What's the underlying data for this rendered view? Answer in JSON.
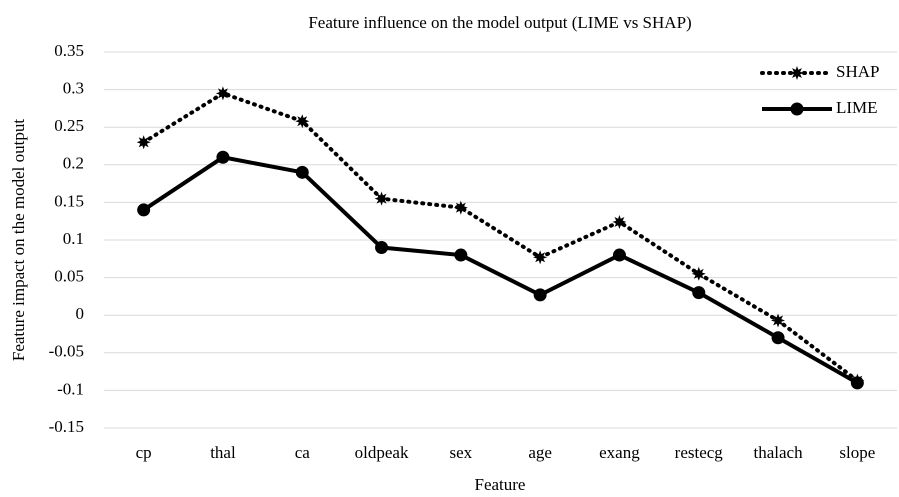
{
  "chart_data": {
    "type": "line",
    "title": "Feature influence on the model output (LIME vs SHAP)",
    "x_label": "Feature",
    "y_label": "Feature impact on the model output",
    "categories": [
      "cp",
      "thal",
      "ca",
      "oldpeak",
      "sex",
      "age",
      "exang",
      "restecg",
      "thalach",
      "slope"
    ],
    "series": [
      {
        "name": "SHAP",
        "color": "#000000",
        "line_style": "dotted",
        "marker": "star",
        "values": [
          0.23,
          0.295,
          0.258,
          0.155,
          0.143,
          0.077,
          0.124,
          0.055,
          -0.007,
          -0.087
        ]
      },
      {
        "name": "LIME",
        "color": "#000000",
        "line_style": "solid",
        "marker": "circle",
        "values": [
          0.14,
          0.21,
          0.19,
          0.09,
          0.08,
          0.027,
          0.08,
          0.03,
          -0.03,
          -0.09
        ]
      }
    ],
    "ylim": [
      -0.15,
      0.35
    ],
    "yticks": [
      -0.15,
      -0.1,
      -0.05,
      0,
      0.05,
      0.1,
      0.15,
      0.2,
      0.25,
      0.3,
      0.35
    ],
    "grid": true,
    "legend": "top-right"
  }
}
